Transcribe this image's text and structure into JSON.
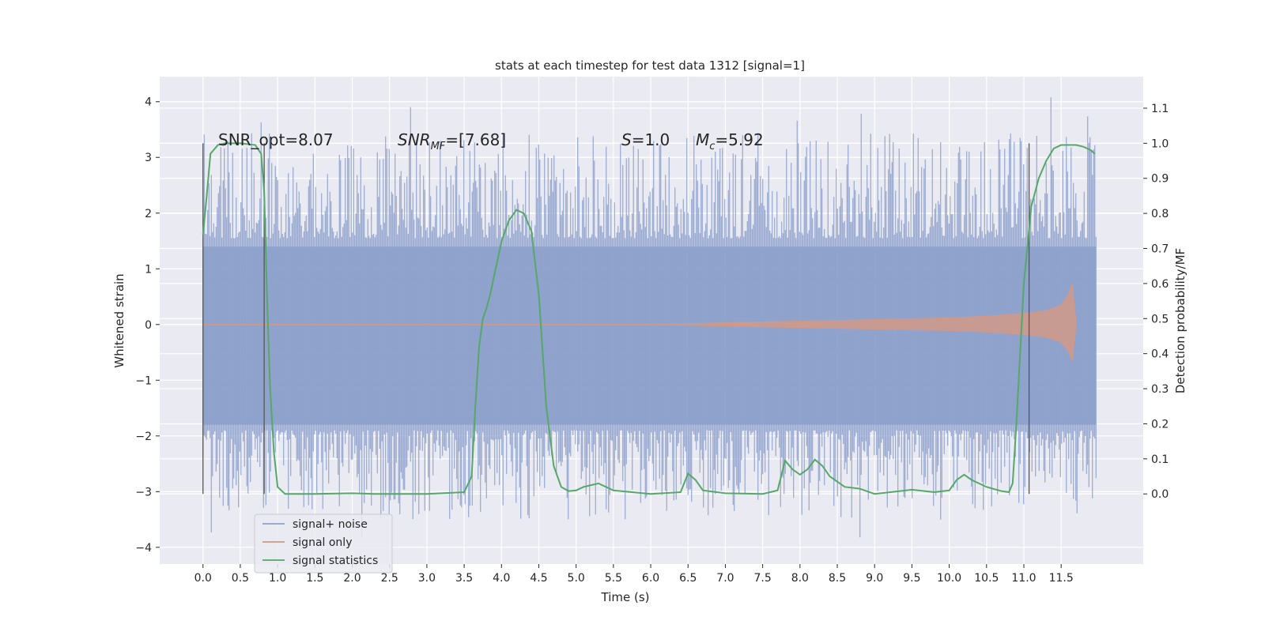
{
  "chart_data": {
    "type": "line",
    "title": "stats at each timestep for test data 1312 [signal=1]",
    "xlabel": "Time (s)",
    "ylabel_left": "Whitened strain",
    "ylabel_right": "Detection probability/MF",
    "xlim": [
      -0.58,
      12.6
    ],
    "ylim_left": [
      -4.3,
      4.45
    ],
    "ylim_right": [
      -0.2,
      1.19
    ],
    "x_ticks": [
      "0.0",
      "0.5",
      "1.0",
      "1.5",
      "2.0",
      "2.5",
      "3.0",
      "3.5",
      "4.0",
      "4.5",
      "5.0",
      "5.5",
      "6.0",
      "6.5",
      "7.0",
      "7.5",
      "8.0",
      "8.5",
      "9.0",
      "9.5",
      "10.0",
      "10.5",
      "11.0",
      "11.5"
    ],
    "y_ticks_left": [
      "4",
      "3",
      "2",
      "1",
      "0",
      "−1",
      "−2",
      "−3",
      "−4"
    ],
    "y_ticks_right": [
      "1.1",
      "1.0",
      "0.9",
      "0.8",
      "0.7",
      "0.6",
      "0.5",
      "0.4",
      "0.3",
      "0.2",
      "0.1",
      "0.0"
    ],
    "grid": true,
    "legend_placement": "lower-left",
    "annotations": {
      "snr_opt": "SNR_opt=8.07",
      "snr_mf_main": "SNR",
      "snr_mf_sub": "MF",
      "snr_mf_rest": "=[7.68]",
      "s_main": "S",
      "s_rest": "=1.0",
      "mc_main": "M",
      "mc_sub": "c",
      "mc_rest": "=5.92"
    },
    "vertical_markers_x": [
      0.0,
      0.82,
      11.07
    ],
    "series": [
      {
        "name": "signal+ noise",
        "color": "#8ea2cc",
        "envelope_typical": [
          -1.8,
          1.4
        ],
        "envelope_extreme": [
          -3.9,
          4.1
        ],
        "x_range": [
          0.0,
          11.97
        ]
      },
      {
        "name": "signal only",
        "color": "#d19987",
        "x": [
          0.0,
          6.0,
          7.0,
          8.0,
          9.0,
          10.0,
          10.5,
          11.0,
          11.3,
          11.5,
          11.6,
          11.65,
          11.7
        ],
        "amplitude": [
          0.0,
          0.0,
          0.03,
          0.06,
          0.09,
          0.12,
          0.15,
          0.2,
          0.25,
          0.35,
          0.55,
          0.72,
          0.0
        ]
      },
      {
        "name": "signal statistics",
        "color": "#55a868",
        "x": [
          0.0,
          0.05,
          0.1,
          0.2,
          0.3,
          0.5,
          0.7,
          0.78,
          0.82,
          0.86,
          0.9,
          0.95,
          1.0,
          1.1,
          1.5,
          2.0,
          2.3,
          3.0,
          3.5,
          3.6,
          3.65,
          3.7,
          3.75,
          3.8,
          3.85,
          3.9,
          4.0,
          4.1,
          4.2,
          4.3,
          4.4,
          4.5,
          4.6,
          4.7,
          4.8,
          4.9,
          5.0,
          5.1,
          5.3,
          5.5,
          6.0,
          6.4,
          6.5,
          6.6,
          6.7,
          7.0,
          7.5,
          7.7,
          7.8,
          7.9,
          8.0,
          8.1,
          8.2,
          8.3,
          8.4,
          8.6,
          8.8,
          9.0,
          9.5,
          9.8,
          10.0,
          10.1,
          10.2,
          10.3,
          10.5,
          10.7,
          10.8,
          10.85,
          10.9,
          11.0,
          11.1,
          11.2,
          11.3,
          11.4,
          11.5,
          11.6,
          11.7,
          11.8,
          11.9,
          11.95
        ],
        "values": [
          0.74,
          0.85,
          0.97,
          0.995,
          1.0,
          1.0,
          0.995,
          0.97,
          0.86,
          0.55,
          0.3,
          0.12,
          0.02,
          0.0,
          0.0,
          0.002,
          0.0,
          0.0,
          0.005,
          0.05,
          0.25,
          0.42,
          0.5,
          0.53,
          0.57,
          0.62,
          0.72,
          0.78,
          0.81,
          0.8,
          0.75,
          0.57,
          0.25,
          0.08,
          0.02,
          0.008,
          0.01,
          0.02,
          0.03,
          0.01,
          0.0,
          0.005,
          0.058,
          0.04,
          0.01,
          0.002,
          0.0,
          0.01,
          0.095,
          0.07,
          0.055,
          0.07,
          0.098,
          0.08,
          0.05,
          0.02,
          0.015,
          0.0,
          0.012,
          0.005,
          0.01,
          0.04,
          0.055,
          0.04,
          0.02,
          0.008,
          0.005,
          0.03,
          0.2,
          0.6,
          0.82,
          0.9,
          0.95,
          0.985,
          0.995,
          0.995,
          0.995,
          0.99,
          0.98,
          0.97
        ]
      }
    ]
  }
}
